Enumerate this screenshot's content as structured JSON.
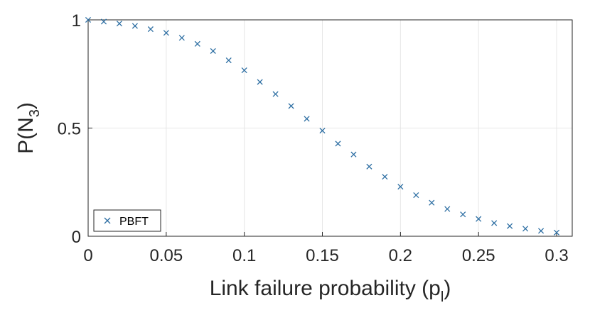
{
  "chart_data": {
    "type": "scatter",
    "xlabel": "Link failure probability (p",
    "xlabel_sub": "l",
    "xlabel_end": ")",
    "ylabel": "P(N",
    "ylabel_sub": "3",
    "ylabel_end": ")",
    "xlim": [
      0,
      0.31
    ],
    "ylim": [
      0,
      1
    ],
    "xticks": [
      0,
      0.05,
      0.1,
      0.15,
      0.2,
      0.25,
      0.3
    ],
    "xtick_labels": [
      "0",
      "0.05",
      "0.1",
      "0.15",
      "0.2",
      "0.25",
      "0.3"
    ],
    "yticks": [
      0,
      0.5,
      1
    ],
    "ytick_labels": [
      "0",
      "0.5",
      "1"
    ],
    "grid": true,
    "legend_position": "bottom-left",
    "series": [
      {
        "name": "PBFT",
        "color": "#2e6fa3",
        "marker": "x",
        "x": [
          0,
          0.01,
          0.02,
          0.03,
          0.04,
          0.05,
          0.06,
          0.07,
          0.08,
          0.09,
          0.1,
          0.11,
          0.12,
          0.13,
          0.14,
          0.15,
          0.16,
          0.17,
          0.18,
          0.19,
          0.2,
          0.21,
          0.22,
          0.23,
          0.24,
          0.25,
          0.26,
          0.27,
          0.28,
          0.29,
          0.3
        ],
        "y": [
          1.0,
          0.992,
          0.983,
          0.972,
          0.957,
          0.94,
          0.917,
          0.889,
          0.856,
          0.813,
          0.767,
          0.713,
          0.657,
          0.602,
          0.543,
          0.488,
          0.428,
          0.378,
          0.322,
          0.275,
          0.229,
          0.19,
          0.155,
          0.126,
          0.101,
          0.08,
          0.061,
          0.047,
          0.035,
          0.025,
          0.017
        ]
      }
    ]
  }
}
